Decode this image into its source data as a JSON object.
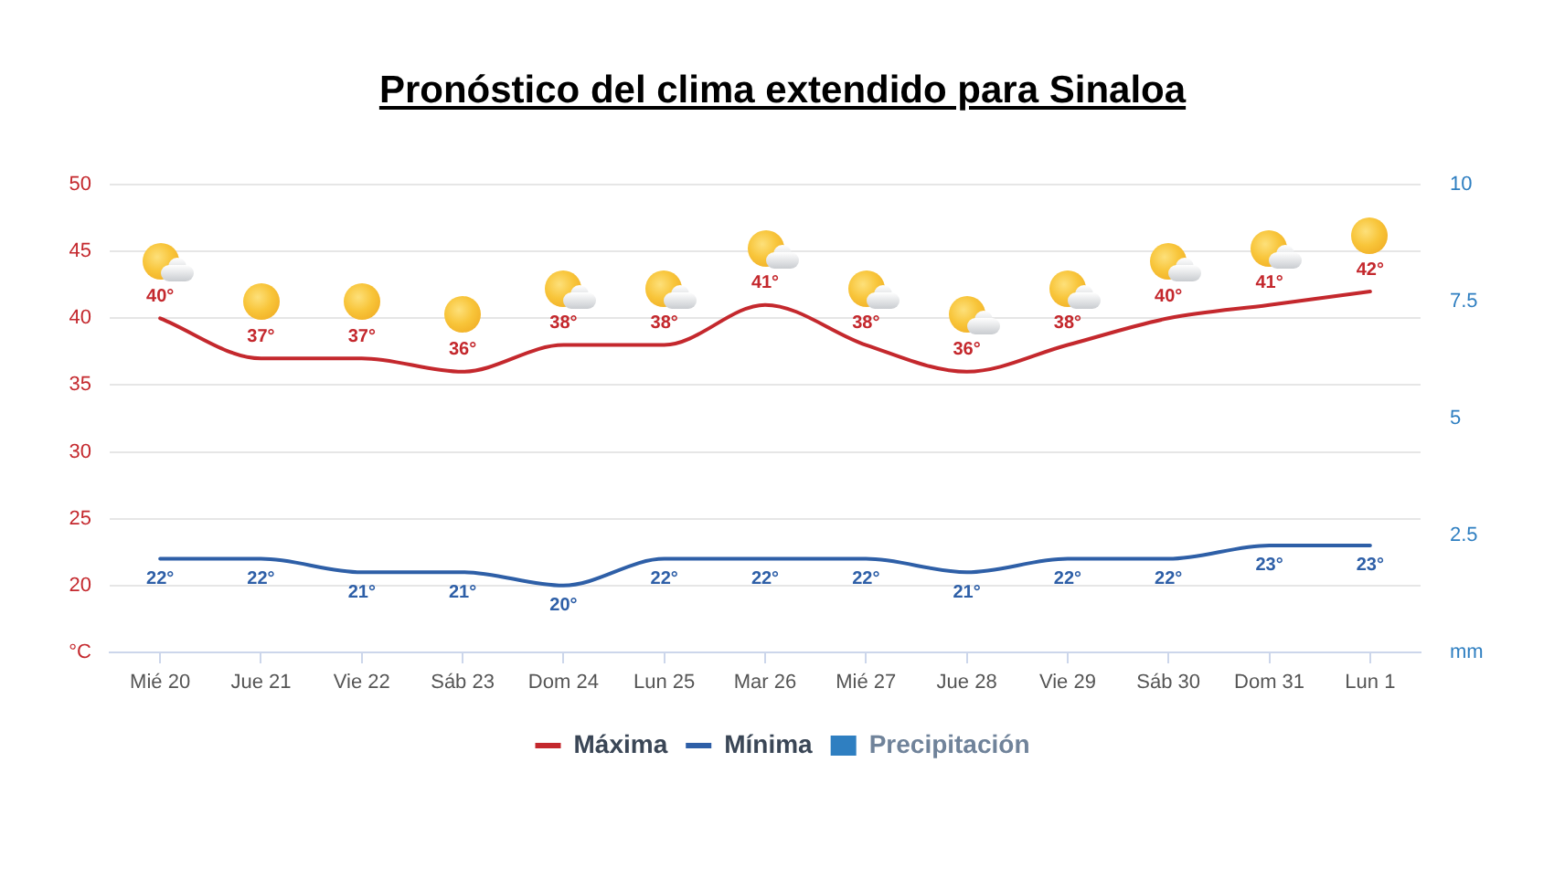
{
  "chart_data": {
    "type": "line",
    "title": "Pronóstico del clima extendido para Sinaloa",
    "categories": [
      "Mié 20",
      "Jue 21",
      "Vie 22",
      "Sáb 23",
      "Dom 24",
      "Lun 25",
      "Mar 26",
      "Mié 27",
      "Jue 28",
      "Vie 29",
      "Sáb 30",
      "Dom 31",
      "Lun 1"
    ],
    "series": [
      {
        "name": "Máxima",
        "color": "#c4282d",
        "values": [
          40,
          37,
          37,
          36,
          38,
          38,
          41,
          38,
          36,
          38,
          40,
          41,
          42
        ],
        "value_labels": [
          "40°",
          "37°",
          "37°",
          "36°",
          "38°",
          "38°",
          "41°",
          "38°",
          "36°",
          "38°",
          "40°",
          "41°",
          "42°"
        ]
      },
      {
        "name": "Mínima",
        "color": "#2e5fa7",
        "values": [
          22,
          22,
          21,
          21,
          20,
          22,
          22,
          22,
          21,
          22,
          22,
          23,
          23
        ],
        "value_labels": [
          "22°",
          "22°",
          "21°",
          "21°",
          "20°",
          "22°",
          "22°",
          "22°",
          "21°",
          "22°",
          "22°",
          "23°",
          "23°"
        ]
      },
      {
        "name": "Precipitación",
        "type": "bar",
        "axis": "y2",
        "color": "#2f7fc1",
        "values": [
          null,
          null,
          null,
          null,
          null,
          null,
          null,
          null,
          null,
          null,
          null,
          null,
          null
        ]
      }
    ],
    "ylim": [
      15,
      50
    ],
    "yticks": [
      {
        "value": 15,
        "label": "°C"
      },
      20,
      25,
      30,
      35,
      40,
      45,
      50
    ],
    "y2lim": [
      0,
      10
    ],
    "y2ticks": [
      {
        "value": 0,
        "label": "mm"
      },
      2.5,
      5,
      7.5,
      10
    ],
    "grid": "y",
    "legend": "bottom"
  }
}
